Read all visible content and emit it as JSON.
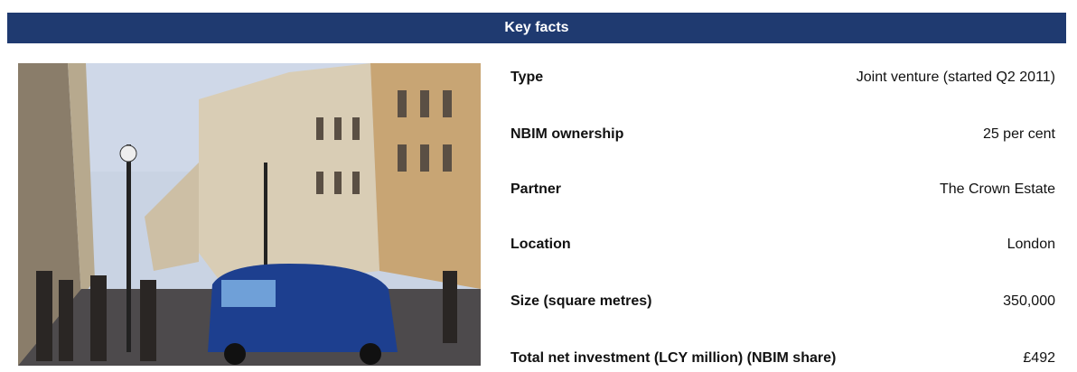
{
  "header": {
    "title": "Key facts"
  },
  "facts": [
    {
      "label": "Type",
      "value": "Joint venture (started Q2 2011)"
    },
    {
      "label": "NBIM ownership",
      "value": "25 per cent"
    },
    {
      "label": "Partner",
      "value": "The Crown Estate"
    },
    {
      "label": "Location",
      "value": "London"
    },
    {
      "label": "Size (square metres)",
      "value": "350,000"
    },
    {
      "label": "Total net investment (LCY million) (NBIM share)",
      "value": "£492"
    }
  ]
}
